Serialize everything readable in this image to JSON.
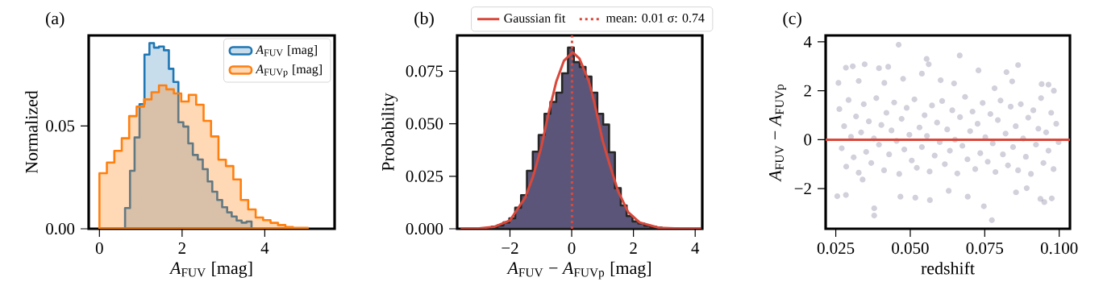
{
  "chart_data": [
    {
      "type": "histogram",
      "title": "(a)",
      "xlabel": "*A*$_{FUV}$ [mag]",
      "ylabel": "Normalized",
      "xlim": [
        -0.26,
        5.69
      ],
      "ylim": [
        0,
        0.094
      ],
      "xticks": [
        0,
        2,
        4
      ],
      "yticks": [
        {
          "value": 0,
          "label": "0.00"
        },
        0.05
      ],
      "legend": "top right",
      "bins": [
        0,
        0.18,
        0.36,
        0.54,
        0.72,
        0.9,
        1.08,
        1.26,
        1.44,
        1.62,
        1.8,
        1.98,
        2.16,
        2.34,
        2.52,
        2.7,
        2.88,
        3.06,
        3.24,
        3.42,
        3.6,
        3.78,
        3.96,
        4.14,
        4.32,
        4.5,
        4.68,
        4.86,
        5.04
      ],
      "series": [
        {
          "type": "histogram",
          "name": "*A*$_{FUV}$ [mag]",
          "color": "#1f77b4",
          "bins": [
            0.62,
            0.74,
            0.85,
            0.97,
            1.09,
            1.21,
            1.32,
            1.44,
            1.56,
            1.68,
            1.79,
            1.91,
            2.03,
            2.15,
            2.26,
            2.38,
            2.5,
            2.62,
            2.73,
            2.85,
            2.97,
            3.09,
            3.2,
            3.32,
            3.44,
            3.56,
            3.68
          ],
          "values": [
            0.0101,
            0.0282,
            0.0444,
            0.0606,
            0.0847,
            0.0903,
            0.0881,
            0.0886,
            0.0868,
            0.0778,
            0.0714,
            0.0518,
            0.0497,
            0.0415,
            0.0359,
            0.0337,
            0.029,
            0.023,
            0.018,
            0.014,
            0.0105,
            0.008,
            0.006,
            0.004,
            0.003,
            0.0035
          ]
        },
        {
          "type": "histogram",
          "name": "*A*$_{FUVp}$ [mag]",
          "color": "#ff7f0e",
          "values": [
            0.027,
            0.0322,
            0.0379,
            0.044,
            0.0548,
            0.0594,
            0.0629,
            0.0664,
            0.0697,
            0.0678,
            0.0658,
            0.0619,
            0.0651,
            0.0603,
            0.0525,
            0.0449,
            0.0336,
            0.0305,
            0.024,
            0.014,
            0.0094,
            0.0055,
            0.0042,
            0.0029,
            0.0018,
            0.0009,
            0.0005,
            0.0005
          ]
        }
      ]
    },
    {
      "type": "histogram",
      "title": "(b)",
      "xlabel": "*A*$_{FUV}$ − *A*$_{FUVp}$ [mag]",
      "ylabel": "Probability",
      "xlim": [
        -3.71,
        4.23
      ],
      "ylim": [
        0,
        0.092
      ],
      "xticks": [
        {
          "value": -2,
          "label": "−2"
        },
        0,
        2,
        4
      ],
      "yticks": [
        {
          "value": 0,
          "label": "0.000"
        },
        0.025,
        {
          "value": 0.05,
          "label": "0.050"
        },
        0.075
      ],
      "legend": "top",
      "series": [
        {
          "type": "histogram",
          "color": "#5b5679",
          "bins": [
            -2.59,
            -2.4,
            -2.21,
            -2.02,
            -1.83,
            -1.64,
            -1.45,
            -1.26,
            -1.07,
            -0.88,
            -0.69,
            -0.5,
            -0.31,
            -0.12,
            0.07,
            0.26,
            0.45,
            0.64,
            0.83,
            1.02,
            1.21,
            1.4,
            1.59,
            1.78,
            1.97,
            2.16,
            2.35,
            2.54,
            2.73,
            2.92
          ],
          "values": [
            0.001,
            0.0016,
            0.003,
            0.005,
            0.01,
            0.016,
            0.0276,
            0.0367,
            0.0446,
            0.0547,
            0.0604,
            0.0648,
            0.074,
            0.0862,
            0.0793,
            0.077,
            0.0724,
            0.0648,
            0.0547,
            0.0496,
            0.0364,
            0.0193,
            0.0111,
            0.0061,
            0.0035,
            0.0025,
            0.0015,
            0.001,
            0.0006
          ]
        },
        {
          "type": "line",
          "name": "Gaussian fit",
          "color": "#d9483b",
          "x": [
            -3.6,
            -3.0,
            -2.5,
            -2.0,
            -1.5,
            -1.25,
            -1.0,
            -0.75,
            -0.5,
            -0.25,
            0.03,
            0.25,
            0.56,
            0.75,
            1.0,
            1.2,
            1.5,
            1.83,
            2.2,
            2.83,
            3.5,
            4.2
          ],
          "values": [
            0.0,
            0.0002,
            0.001,
            0.004,
            0.015,
            0.025,
            0.038,
            0.0549,
            0.07,
            0.08,
            0.084,
            0.081,
            0.07,
            0.059,
            0.042,
            0.032,
            0.018,
            0.0079,
            0.003,
            0.0005,
            0.0001,
            0.0
          ]
        }
      ],
      "ref_lines": [
        {
          "axis": "x",
          "value": 0.01,
          "label": "mean: 0.01 σ: 0.74",
          "color": "#d9483b",
          "line_style": "dotted"
        }
      ]
    },
    {
      "type": "scatter",
      "title": "(c)",
      "xlabel": "redshift",
      "ylabel": "*A*$_{FUV}$ − *A*$_{FUVp}$",
      "xlim": [
        0.0216,
        0.1036
      ],
      "ylim": [
        -3.64,
        4.26
      ],
      "xticks": [
        0.025,
        {
          "value": 0.05,
          "label": "0.050"
        },
        0.075,
        {
          "value": 0.1,
          "label": "0.100"
        }
      ],
      "yticks": [
        {
          "value": -2,
          "label": "−2"
        },
        0,
        2,
        4
      ],
      "color": "#2d2a5a",
      "marker": "circle",
      "x": [
        0.0461,
        0.0666,
        0.0555,
        0.0562,
        0.0347,
        0.0307,
        0.0284,
        0.0862,
        0.0823,
        0.0729,
        0.0426,
        0.0395,
        0.0255,
        0.0284,
        0.0379,
        0.0379,
        0.0467,
        0.0566,
        0.0747,
        0.0774,
        0.095,
        0.0975,
        0.0937,
        0.0517,
        0.0693,
        0.0855,
        0.034,
        0.0629,
        0.0891,
        0.0964,
        0.0941,
        0.0982,
        0.0476,
        0.0539,
        0.0602,
        0.0647,
        0.0783,
        0.0842,
        0.0413,
        0.0259,
        0.0327,
        0.0262,
        0.027,
        0.0278,
        0.0285,
        0.0293,
        0.0301,
        0.031,
        0.0318,
        0.0327,
        0.0335,
        0.0344,
        0.0352,
        0.0361,
        0.0369,
        0.0378,
        0.0386,
        0.0395,
        0.0403,
        0.0412,
        0.042,
        0.0429,
        0.0437,
        0.0446,
        0.0454,
        0.0463,
        0.0471,
        0.048,
        0.0488,
        0.0497,
        0.0505,
        0.0514,
        0.0522,
        0.0531,
        0.0539,
        0.0548,
        0.0556,
        0.0565,
        0.0573,
        0.0582,
        0.059,
        0.0599,
        0.0607,
        0.0616,
        0.0624,
        0.0633,
        0.0641,
        0.065,
        0.0658,
        0.0667,
        0.0675,
        0.0684,
        0.0692,
        0.0701,
        0.0709,
        0.0718,
        0.0726,
        0.0735,
        0.0743,
        0.0752,
        0.076,
        0.0769,
        0.0777,
        0.0786,
        0.0794,
        0.0803,
        0.0811,
        0.082,
        0.0828,
        0.0837,
        0.0845,
        0.0854,
        0.0862,
        0.0871,
        0.0879,
        0.0888,
        0.0896,
        0.0905,
        0.0913,
        0.0922,
        0.093,
        0.0939,
        0.0947,
        0.0956,
        0.0964,
        0.0973,
        0.0981,
        0.099,
        0.0998
      ],
      "values": [
        3.88,
        3.44,
        3.3,
        3.08,
        3.08,
        3.0,
        2.94,
        3.05,
        2.76,
        2.83,
        2.98,
        2.92,
        -2.31,
        -2.26,
        -2.8,
        -3.1,
        -2.33,
        -2.47,
        -2.72,
        -3.29,
        -2.55,
        -2.4,
        -2.42,
        -2.37,
        -2.33,
        -2.15,
        -1.63,
        -2.09,
        -1.98,
        2.25,
        2.27,
        2.0,
        2.49,
        2.7,
        2.43,
        2.3,
        2.1,
        2.38,
        2.32,
        2.32,
        2.4,
        1.25,
        -0.35,
        0.55,
        -1.1,
        1.62,
        0.12,
        -0.72,
        0.95,
        -1.35,
        0.3,
        1.45,
        -0.5,
        0.75,
        -0.95,
        0.05,
        1.7,
        -0.2,
        0.6,
        -1.25,
        1.1,
        -0.6,
        0.38,
        1.52,
        -0.05,
        -1.4,
        0.85,
        -0.4,
        1.3,
        0.2,
        -0.85,
        1.65,
        -1.15,
        0.5,
        -0.3,
        1.0,
        0.15,
        -1.3,
        1.4,
        -0.65,
        0.7,
        -0.1,
        1.58,
        -1.0,
        0.42,
        -0.45,
        1.2,
        0.0,
        -1.38,
        0.92,
        -0.25,
        1.75,
        -0.8,
        0.35,
        1.15,
        -1.2,
        0.65,
        -0.55,
        1.5,
        0.1,
        -0.9,
        1.05,
        -0.15,
        -1.32,
        0.8,
        1.6,
        -0.6,
        0.25,
        -1.05,
        1.35,
        -0.3,
        0.55,
        -1.25,
        1.45,
        0.05,
        -0.7,
        0.9,
        -1.4,
        1.2,
        -0.2,
        0.45,
        1.7,
        -0.95,
        0.3,
        -0.45,
        1.1,
        -1.2,
        0.65,
        -0.1
      ],
      "ref_lines": [
        {
          "axis": "y",
          "value": 0,
          "color": "#d9483b",
          "line_style": "solid"
        }
      ]
    }
  ]
}
